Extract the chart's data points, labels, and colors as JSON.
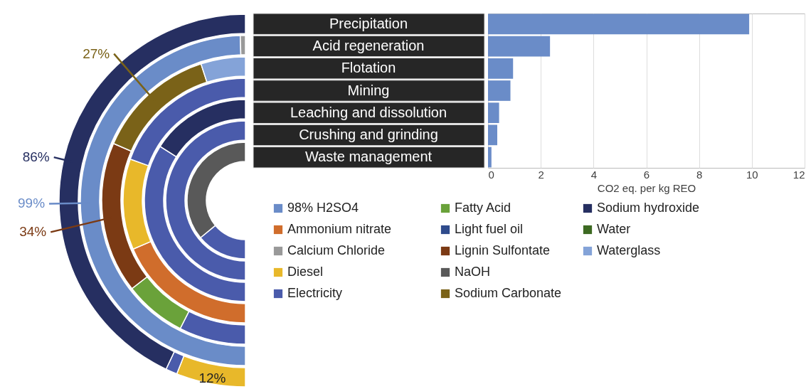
{
  "chart_data": [
    {
      "type": "donut",
      "legend": "bottom right",
      "categories": [
        "98% H2SO4",
        "Ammonium nitrate",
        "Calcium Chloride",
        "Diesel",
        "Electricity",
        "Fatty Acid",
        "Light fuel oil",
        "Lignin Sulfontate",
        "NaOH",
        "Sodium Carbonate",
        "Sodium hydroxide",
        "Water",
        "Waterglass"
      ],
      "colors": [
        "#6a8cc8",
        "#d06d2c",
        "#999999",
        "#e8b82a",
        "#4a5bab",
        "#6aa23a",
        "#2f4b8c",
        "#7b3a14",
        "#595959",
        "#7a6218",
        "#262f61",
        "#3d6a22",
        "#84a3d8"
      ],
      "series": [
        {
          "values": [
            null,
            null,
            null,
            12,
            2,
            null,
            null,
            null,
            null,
            null,
            86,
            null,
            null
          ],
          "value_labels": [
            null,
            null,
            null,
            "12%",
            null,
            null,
            null,
            null,
            null,
            null,
            "86%",
            null,
            null
          ]
        },
        {
          "values": [
            99,
            null,
            1,
            null,
            null,
            null,
            null,
            null,
            null,
            null,
            null,
            null,
            null
          ],
          "value_labels": [
            "99%",
            null,
            null,
            null,
            null,
            null,
            null,
            null,
            null,
            null,
            null,
            null,
            null
          ]
        },
        {
          "values": [
            null,
            null,
            null,
            null,
            15,
            14,
            null,
            34,
            null,
            27,
            null,
            null,
            10
          ],
          "value_labels": [
            null,
            null,
            null,
            null,
            null,
            null,
            null,
            "34%",
            null,
            "27%",
            null,
            null,
            null
          ]
        },
        {
          "values": [
            null,
            37,
            null,
            24,
            39,
            null,
            null,
            null,
            null,
            null,
            null,
            null,
            null
          ]
        },
        {
          "values": [
            null,
            null,
            null,
            null,
            68,
            null,
            null,
            null,
            null,
            null,
            32,
            null,
            null
          ]
        },
        {
          "values": [
            null,
            null,
            null,
            null,
            100,
            null,
            null,
            null,
            null,
            null,
            null,
            null,
            null
          ]
        },
        {
          "values": [
            null,
            null,
            null,
            null,
            28,
            null,
            null,
            null,
            72,
            null,
            null,
            null,
            null
          ]
        }
      ]
    },
    {
      "type": "bar",
      "orientation": "horizontal",
      "categories": [
        "Precipitation",
        "Acid regeneration",
        "Flotation",
        "Mining",
        "Leaching and dissolution",
        "Crushing and grinding",
        "Waste management"
      ],
      "values": [
        9.9,
        2.35,
        0.95,
        0.85,
        0.42,
        0.35,
        0.13
      ],
      "color": "#6a8cc8",
      "xlabel": "CO2 eq. per kg REO",
      "xlim": [
        0,
        12
      ],
      "xticks": [
        0,
        2,
        4,
        6,
        8,
        10,
        12
      ],
      "grid": "x"
    }
  ]
}
